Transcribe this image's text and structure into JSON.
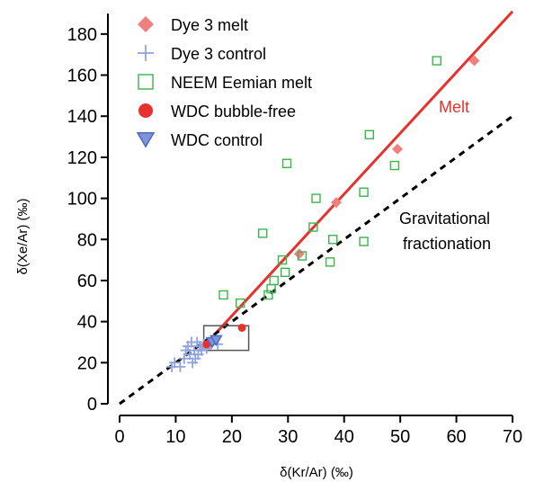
{
  "chart_data": {
    "type": "scatter",
    "xlabel": "δ(Kr/Ar) (‰)",
    "ylabel": "δ(Xe/Ar) (‰)",
    "xlim": [
      0,
      70
    ],
    "ylim": [
      0,
      190
    ],
    "x_ticks": [
      0,
      10,
      20,
      30,
      40,
      50,
      60,
      70
    ],
    "y_ticks": [
      0,
      20,
      40,
      60,
      80,
      100,
      120,
      140,
      160,
      180
    ],
    "legend_position": "top-left",
    "series": [
      {
        "name": "Dye 3 melt",
        "marker": "diamond",
        "color": "#f08080",
        "points": [
          [
            63.2,
            167
          ],
          [
            49.5,
            124
          ],
          [
            38.6,
            98
          ],
          [
            32,
            73
          ],
          [
            15.8,
            29
          ]
        ]
      },
      {
        "name": "Dye 3 control",
        "marker": "plus",
        "color": "#8fa3dd",
        "points": [
          [
            9.3,
            18
          ],
          [
            9.8,
            20
          ],
          [
            10.8,
            18
          ],
          [
            11.5,
            22
          ],
          [
            11.8,
            26
          ],
          [
            12.2,
            28
          ],
          [
            12.5,
            24
          ],
          [
            12.8,
            30
          ],
          [
            13.0,
            20
          ],
          [
            13.3,
            26
          ],
          [
            13.5,
            22
          ],
          [
            13.8,
            30
          ],
          [
            14.0,
            24
          ],
          [
            14.3,
            28
          ],
          [
            14.6,
            26
          ],
          [
            15.0,
            29
          ],
          [
            15.5,
            27
          ],
          [
            16.2,
            29
          ],
          [
            16.8,
            31
          ],
          [
            17.5,
            29
          ]
        ]
      },
      {
        "name": "NEEM Eemian melt",
        "marker": "open-square",
        "color": "#39b54a",
        "points": [
          [
            56.5,
            167
          ],
          [
            44.5,
            131
          ],
          [
            49,
            116
          ],
          [
            29.8,
            117
          ],
          [
            35,
            100
          ],
          [
            43.5,
            103
          ],
          [
            25.5,
            83
          ],
          [
            34.5,
            86
          ],
          [
            38,
            80
          ],
          [
            43.5,
            79
          ],
          [
            29,
            70
          ],
          [
            32.5,
            72
          ],
          [
            37.5,
            69
          ],
          [
            29.5,
            64
          ],
          [
            27.5,
            60
          ],
          [
            27,
            56
          ],
          [
            26.5,
            53
          ],
          [
            18.5,
            53
          ],
          [
            21.5,
            49
          ]
        ]
      },
      {
        "name": "WDC bubble-free",
        "marker": "filled-circle",
        "color": "#e8312d",
        "points": [
          [
            21.8,
            37
          ],
          [
            15.5,
            29
          ]
        ]
      },
      {
        "name": "WDC control",
        "marker": "triangle-down",
        "color": "#4a6cc4",
        "points": [
          [
            16.5,
            30
          ],
          [
            17.2,
            31
          ]
        ]
      }
    ],
    "lines": [
      {
        "label": "Melt",
        "style": "solid",
        "color": "#e8312d",
        "from": [
          15,
          28
        ],
        "to": [
          70,
          191
        ]
      },
      {
        "label": "Gravitational fractionation",
        "style": "dashed",
        "color": "#000000",
        "from": [
          0,
          0
        ],
        "to": [
          70,
          140
        ]
      }
    ],
    "annotations": {
      "melt_label": "Melt",
      "grav_label_line1": "Gravitational",
      "grav_label_line2": "fractionation"
    },
    "inset_box": {
      "x": [
        15,
        23
      ],
      "y": [
        26,
        38
      ]
    }
  }
}
